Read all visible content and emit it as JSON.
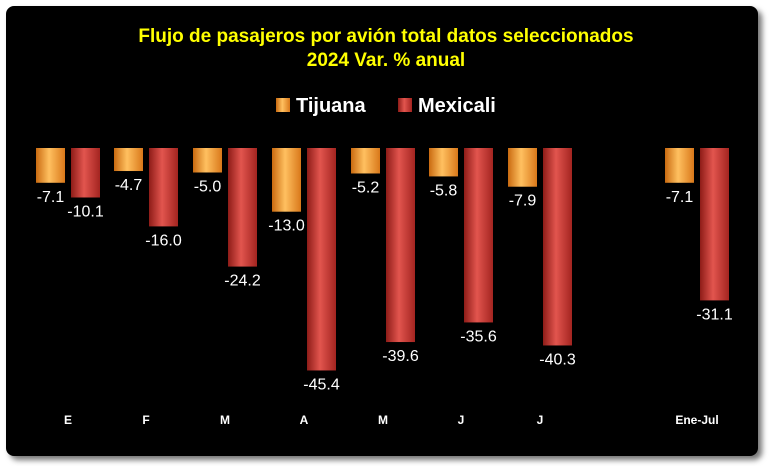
{
  "chart_data": {
    "type": "bar",
    "title": "Flujo de pasajeros por avión total datos seleccionados",
    "subtitle": "2024 Var. % anual",
    "categories": [
      "E",
      "F",
      "M",
      "A",
      "M",
      "J",
      "J",
      "Ene-Jul"
    ],
    "series": [
      {
        "name": "Tijuana",
        "values": [
          -7.1,
          -4.7,
          -5.0,
          -13.0,
          -5.2,
          -5.8,
          -7.9,
          -7.1
        ],
        "color": "#f7a033"
      },
      {
        "name": "Mexicali",
        "values": [
          -10.1,
          -16.0,
          -24.2,
          -45.4,
          -39.6,
          -35.6,
          -40.3,
          -31.1
        ],
        "color": "#c8312c"
      }
    ],
    "ylim": [
      -50,
      0
    ],
    "legend_position": "top",
    "grid": false,
    "background": "#000000",
    "title_color": "#ffff00"
  }
}
